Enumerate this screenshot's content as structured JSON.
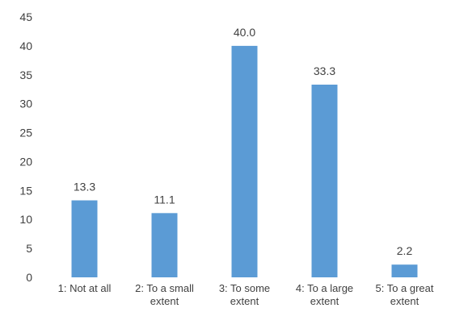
{
  "chart_data": {
    "type": "bar",
    "categories": [
      [
        "1: Not at all"
      ],
      [
        "2: To a small",
        "extent"
      ],
      [
        "3: To some",
        "extent"
      ],
      [
        "4: To a large",
        "extent"
      ],
      [
        "5: To a great",
        "extent"
      ]
    ],
    "values": [
      13.3,
      11.1,
      40.0,
      33.3,
      2.2
    ],
    "value_labels": [
      "13.3",
      "11.1",
      "40.0",
      "33.3",
      "2.2"
    ],
    "ylim": [
      0,
      45
    ],
    "yticks": [
      0,
      5,
      10,
      15,
      20,
      25,
      30,
      35,
      40,
      45
    ],
    "grid": false,
    "legend": "none",
    "bar_color": "#5b9bd5",
    "text_color": "#404040"
  }
}
